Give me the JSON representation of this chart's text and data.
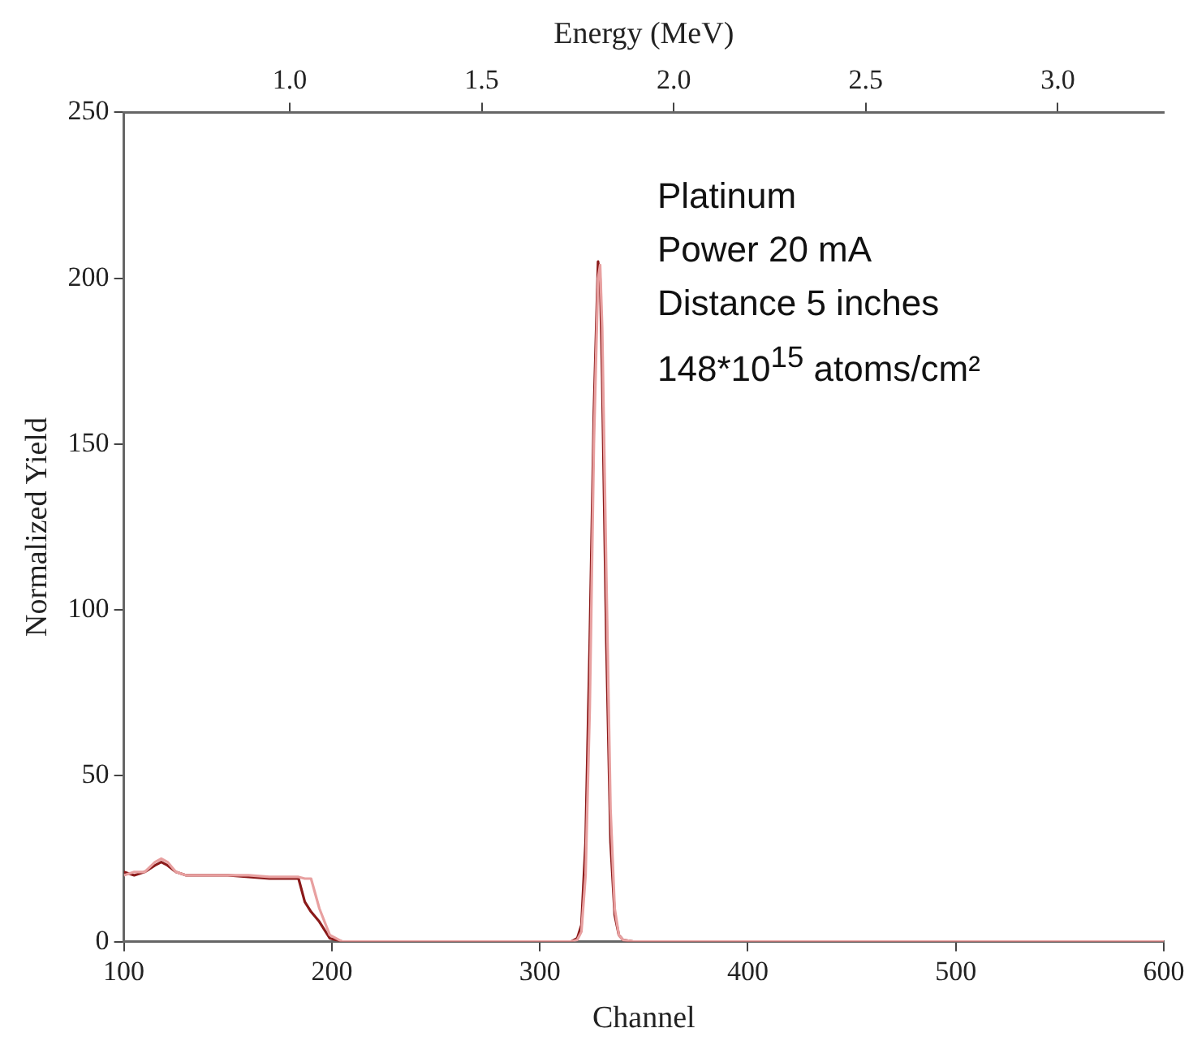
{
  "chart_data": {
    "type": "line",
    "xlabel": "Channel",
    "ylabel": "Normalized Yield",
    "x2label": "Energy (MeV)",
    "xlim": [
      100,
      600
    ],
    "xticks": [
      100,
      200,
      300,
      400,
      500,
      600
    ],
    "ylim": [
      0,
      250
    ],
    "yticks": [
      0,
      50,
      100,
      150,
      200,
      250
    ],
    "x2lim": [
      0.568,
      3.276
    ],
    "x2ticks": [
      {
        "value": 1,
        "label": "1.0"
      },
      {
        "value": 1.5,
        "label": "1.5"
      },
      {
        "value": 2,
        "label": "2.0"
      },
      {
        "value": 2.5,
        "label": "2.5"
      },
      {
        "value": 3,
        "label": "3.0"
      }
    ],
    "grid": false,
    "legend": false,
    "marker": "none",
    "line_style": "solid",
    "annotations": [
      "Platinum",
      "Power 20 mA",
      "Distance 5 inches",
      "148*10$^{15}$ atoms/cm²"
    ],
    "series": [
      {
        "color": "#e8a0a0",
        "x": [
          100,
          105,
          110,
          115,
          118,
          121,
          125,
          130,
          140,
          150,
          160,
          170,
          180,
          184,
          187,
          190,
          194,
          199,
          205,
          250,
          300,
          315,
          318,
          320,
          322,
          324,
          326,
          328,
          329,
          330,
          332,
          334,
          336,
          338,
          340,
          345,
          400,
          500,
          600
        ],
        "values": [
          20,
          21,
          21,
          24,
          25,
          24,
          21,
          20,
          20,
          20,
          20,
          19.5,
          19.5,
          19.5,
          19,
          19,
          10,
          2,
          0,
          0,
          0,
          0,
          0.5,
          3,
          20,
          70,
          150,
          200,
          204,
          185,
          110,
          40,
          10,
          2,
          0.5,
          0,
          0,
          0,
          0
        ]
      },
      {
        "color": "#8b1a1a",
        "x": [
          100,
          105,
          110,
          115,
          118,
          121,
          125,
          130,
          140,
          150,
          160,
          170,
          180,
          184,
          187,
          190,
          194,
          199,
          205,
          250,
          300,
          315,
          318,
          320,
          322,
          324,
          326,
          328,
          329,
          330,
          332,
          334,
          336,
          338,
          340,
          345,
          400,
          500,
          600
        ],
        "values": [
          21,
          20,
          21,
          23,
          24,
          23,
          21,
          20,
          20,
          20,
          19.5,
          19,
          19,
          19,
          12,
          9,
          6,
          1,
          0,
          0,
          0,
          0,
          1,
          5,
          30,
          90,
          160,
          205,
          200,
          170,
          90,
          30,
          8,
          2,
          0.5,
          0,
          0,
          0,
          0
        ]
      }
    ]
  }
}
